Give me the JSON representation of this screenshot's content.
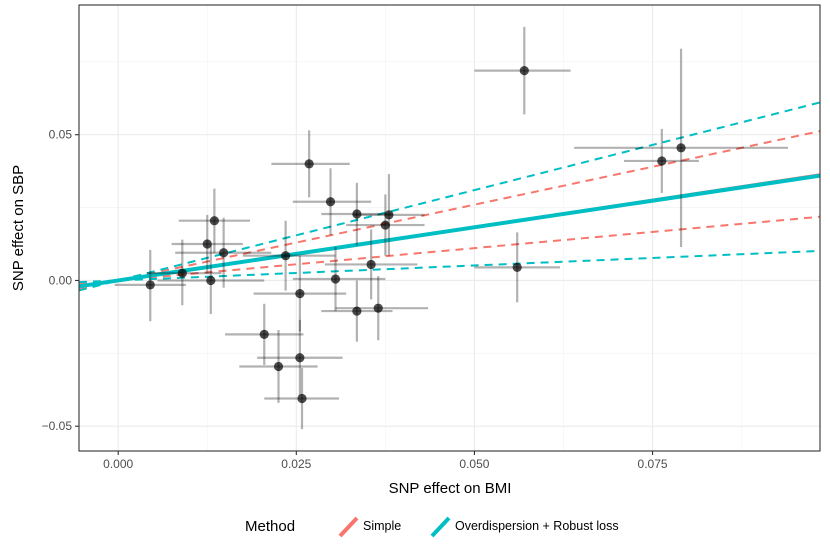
{
  "chart_data": {
    "type": "scatter",
    "xlabel": "SNP effect on BMI",
    "ylabel": "SNP effect on SBP",
    "xlim": [
      -0.0055,
      0.0985
    ],
    "ylim": [
      -0.0585,
      0.0945
    ],
    "x_ticks": [
      0.0,
      0.025,
      0.05,
      0.075
    ],
    "x_tick_labels": [
      "0.000",
      "0.025",
      "0.050",
      "0.075"
    ],
    "y_ticks": [
      -0.05,
      0.0,
      0.05
    ],
    "y_tick_labels": [
      "−0.05",
      "0.00",
      "0.05"
    ],
    "grid": true,
    "legend": {
      "title": "Method",
      "position": "bottom",
      "entries": [
        {
          "label": "Simple",
          "color": "#F8766D"
        },
        {
          "label": "Overdispersion + Robust loss",
          "color": "#00BFC4"
        }
      ]
    },
    "points": [
      {
        "x": 0.0045,
        "y": -0.0015,
        "x_lo": -0.0005,
        "x_hi": 0.0095,
        "y_lo": -0.014,
        "y_hi": 0.0105
      },
      {
        "x": 0.009,
        "y": 0.0025,
        "x_lo": 0.004,
        "x_hi": 0.0145,
        "y_lo": -0.0085,
        "y_hi": 0.014
      },
      {
        "x": 0.0125,
        "y": 0.0125,
        "x_lo": 0.0075,
        "x_hi": 0.0175,
        "y_lo": 0.0025,
        "y_hi": 0.0225
      },
      {
        "x": 0.0135,
        "y": 0.0205,
        "x_lo": 0.0085,
        "x_hi": 0.0185,
        "y_lo": 0.0095,
        "y_hi": 0.0315
      },
      {
        "x": 0.013,
        "y": 0.0,
        "x_lo": 0.0055,
        "x_hi": 0.0205,
        "y_lo": -0.0115,
        "y_hi": 0.012
      },
      {
        "x": 0.0148,
        "y": 0.0095,
        "x_lo": 0.008,
        "x_hi": 0.0215,
        "y_lo": -0.0025,
        "y_hi": 0.0215
      },
      {
        "x": 0.0205,
        "y": -0.0185,
        "x_lo": 0.015,
        "x_hi": 0.026,
        "y_lo": -0.029,
        "y_hi": -0.008
      },
      {
        "x": 0.0225,
        "y": -0.0295,
        "x_lo": 0.017,
        "x_hi": 0.028,
        "y_lo": -0.042,
        "y_hi": -0.017
      },
      {
        "x": 0.0235,
        "y": 0.0085,
        "x_lo": 0.0175,
        "x_hi": 0.0305,
        "y_lo": -0.0035,
        "y_hi": 0.0205
      },
      {
        "x": 0.0255,
        "y": -0.0045,
        "x_lo": 0.019,
        "x_hi": 0.032,
        "y_lo": -0.0175,
        "y_hi": 0.0085
      },
      {
        "x": 0.0255,
        "y": -0.0265,
        "x_lo": 0.0195,
        "x_hi": 0.0315,
        "y_lo": -0.0395,
        "y_hi": -0.0135
      },
      {
        "x": 0.0258,
        "y": -0.0405,
        "x_lo": 0.0205,
        "x_hi": 0.031,
        "y_lo": -0.051,
        "y_hi": -0.03
      },
      {
        "x": 0.0268,
        "y": 0.04,
        "x_lo": 0.0215,
        "x_hi": 0.0325,
        "y_lo": 0.0285,
        "y_hi": 0.0515
      },
      {
        "x": 0.0298,
        "y": 0.027,
        "x_lo": 0.0245,
        "x_hi": 0.0355,
        "y_lo": 0.0155,
        "y_hi": 0.0385
      },
      {
        "x": 0.0305,
        "y": 0.0005,
        "x_lo": 0.0245,
        "x_hi": 0.0375,
        "y_lo": -0.0105,
        "y_hi": 0.0115
      },
      {
        "x": 0.0335,
        "y": 0.0228,
        "x_lo": 0.0285,
        "x_hi": 0.0385,
        "y_lo": 0.012,
        "y_hi": 0.0335
      },
      {
        "x": 0.0335,
        "y": -0.0105,
        "x_lo": 0.0285,
        "x_hi": 0.0385,
        "y_lo": -0.021,
        "y_hi": 0.0
      },
      {
        "x": 0.0355,
        "y": 0.0055,
        "x_lo": 0.029,
        "x_hi": 0.042,
        "y_lo": -0.0065,
        "y_hi": 0.0175
      },
      {
        "x": 0.0365,
        "y": -0.0095,
        "x_lo": 0.0305,
        "x_hi": 0.0435,
        "y_lo": -0.0205,
        "y_hi": 0.0015
      },
      {
        "x": 0.0375,
        "y": 0.019,
        "x_lo": 0.032,
        "x_hi": 0.043,
        "y_lo": 0.0085,
        "y_hi": 0.0295
      },
      {
        "x": 0.038,
        "y": 0.0225,
        "x_lo": 0.033,
        "x_hi": 0.043,
        "y_lo": 0.0085,
        "y_hi": 0.0365
      },
      {
        "x": 0.056,
        "y": 0.0045,
        "x_lo": 0.05,
        "x_hi": 0.062,
        "y_lo": -0.0075,
        "y_hi": 0.0165
      },
      {
        "x": 0.057,
        "y": 0.072,
        "x_lo": 0.05,
        "x_hi": 0.0635,
        "y_lo": 0.057,
        "y_hi": 0.087
      },
      {
        "x": 0.0763,
        "y": 0.041,
        "x_lo": 0.071,
        "x_hi": 0.0815,
        "y_lo": 0.03,
        "y_hi": 0.052
      },
      {
        "x": 0.079,
        "y": 0.0455,
        "x_lo": 0.064,
        "x_hi": 0.094,
        "y_lo": 0.0115,
        "y_hi": 0.0795
      }
    ],
    "lines": [
      {
        "method": "Simple",
        "role": "estimate",
        "dash": false,
        "width": 2.0,
        "intercept": 0.0,
        "slope": 0.37
      },
      {
        "method": "Simple",
        "role": "upper",
        "dash": true,
        "width": 2.0,
        "intercept": 0.0,
        "slope": 0.52
      },
      {
        "method": "Simple",
        "role": "lower",
        "dash": true,
        "width": 2.0,
        "intercept": 0.0,
        "slope": 0.222
      },
      {
        "method": "Overdispersion + Robust loss",
        "role": "estimate",
        "dash": false,
        "width": 4.0,
        "intercept": 0.0,
        "slope": 0.365
      },
      {
        "method": "Overdispersion + Robust loss",
        "role": "upper",
        "dash": true,
        "width": 2.0,
        "intercept": 0.0,
        "slope": 0.62
      },
      {
        "method": "Overdispersion + Robust loss",
        "role": "lower",
        "dash": true,
        "width": 2.0,
        "intercept": 0.0,
        "slope": 0.103
      }
    ]
  }
}
